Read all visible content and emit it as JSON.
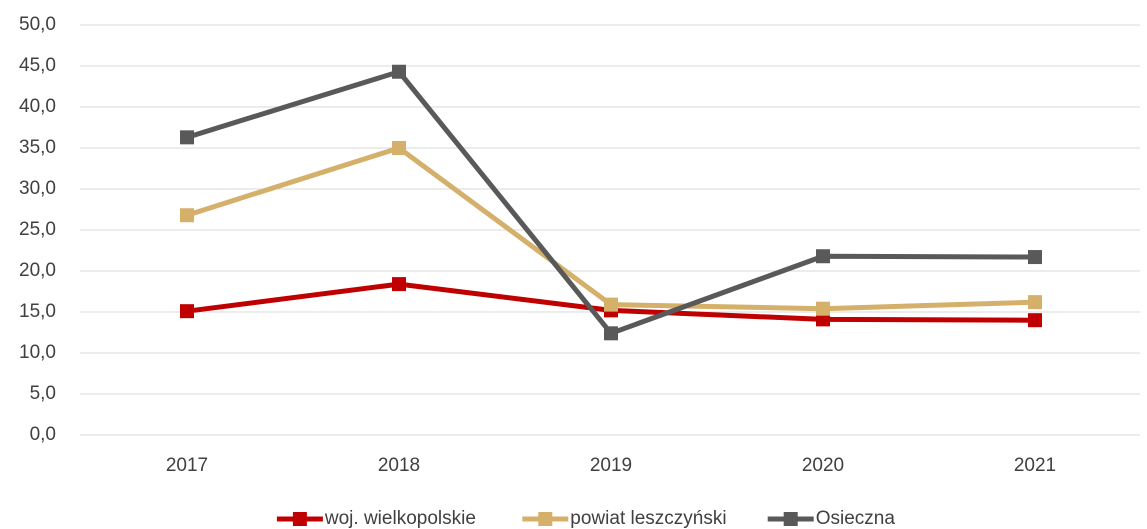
{
  "chart_data": {
    "type": "line",
    "categories": [
      "2017",
      "2018",
      "2019",
      "2020",
      "2021"
    ],
    "series": [
      {
        "name": "woj. wielkopolskie",
        "color": "#c00000",
        "values": [
          15.1,
          18.4,
          15.2,
          14.1,
          14.0
        ]
      },
      {
        "name": "powiat leszczyński",
        "color": "#d4b06a",
        "values": [
          26.8,
          35.0,
          15.9,
          15.4,
          16.2
        ]
      },
      {
        "name": "Osieczna",
        "color": "#595959",
        "values": [
          36.3,
          44.3,
          12.4,
          21.8,
          21.7
        ]
      }
    ],
    "ylim": [
      0,
      50
    ],
    "yticks": [
      {
        "value": 0,
        "label": "0,0"
      },
      {
        "value": 5,
        "label": "5,0"
      },
      {
        "value": 10,
        "label": "10,0"
      },
      {
        "value": 15,
        "label": "15,0"
      },
      {
        "value": 20,
        "label": "20,0"
      },
      {
        "value": 25,
        "label": "25,0"
      },
      {
        "value": 30,
        "label": "30,0"
      },
      {
        "value": 35,
        "label": "35,0"
      },
      {
        "value": 40,
        "label": "40,0"
      },
      {
        "value": 45,
        "label": "45,0"
      },
      {
        "value": 50,
        "label": "50,0"
      }
    ],
    "grid": true,
    "legend": "bottom"
  }
}
